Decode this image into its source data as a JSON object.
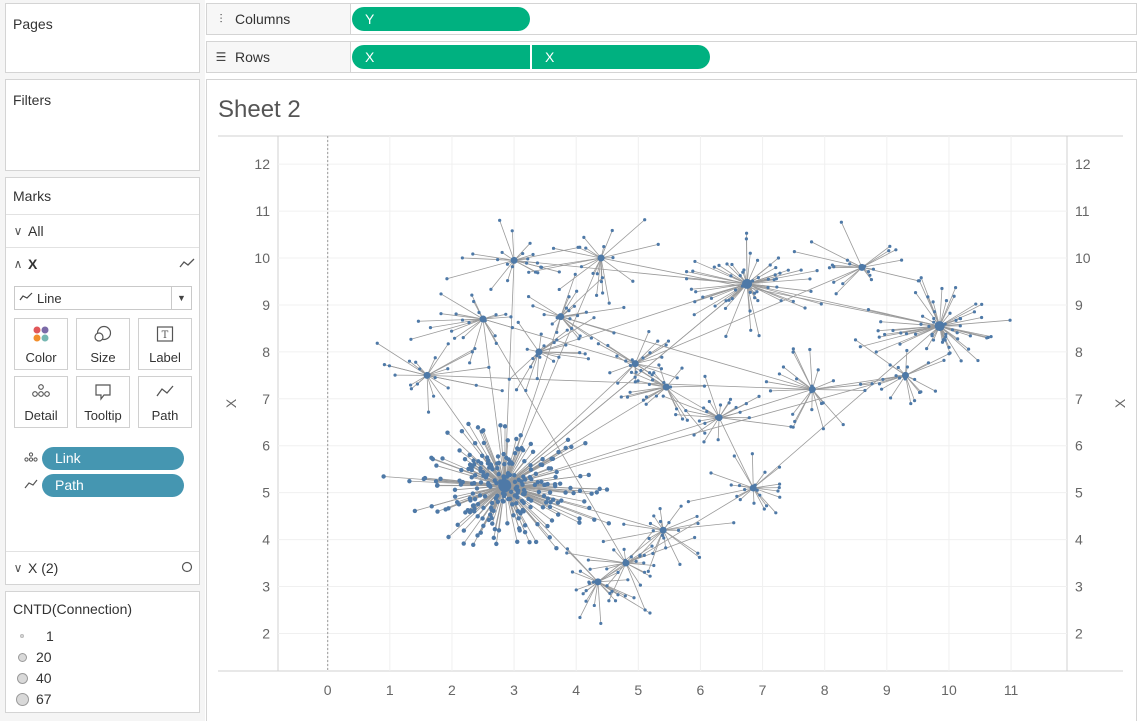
{
  "left_panel": {
    "pages_title": "Pages",
    "filters_title": "Filters",
    "marks": {
      "title": "Marks",
      "all_label": "All",
      "x_label": "X",
      "mark_type": "Line",
      "buttons": [
        {
          "label": "Color",
          "icon": "color-icon"
        },
        {
          "label": "Size",
          "icon": "size-icon"
        },
        {
          "label": "Label",
          "icon": "label-icon"
        },
        {
          "label": "Detail",
          "icon": "detail-icon"
        },
        {
          "label": "Tooltip",
          "icon": "tooltip-icon"
        },
        {
          "label": "Path",
          "icon": "path-icon"
        }
      ],
      "pills": [
        {
          "label": "Link",
          "icon": "detail-icon"
        },
        {
          "label": "Path",
          "icon": "path-icon"
        }
      ],
      "x2_label": "X (2)"
    },
    "legend": {
      "title": "CNTD(Connection)",
      "items": [
        "1",
        "20",
        "40",
        "67"
      ]
    }
  },
  "shelves": {
    "columns_label": "Columns",
    "rows_label": "Rows",
    "columns_pills": [
      "Y"
    ],
    "rows_pills": [
      "X",
      "X"
    ]
  },
  "sheet": {
    "title": "Sheet 2"
  },
  "chart_data": {
    "type": "scatter",
    "xlabel": "",
    "ylabel": "X",
    "ylabel_right": "X",
    "xlim": [
      -0.8,
      11.9
    ],
    "ylim": [
      1.2,
      12.6
    ],
    "x_ticks": [
      0,
      1,
      2,
      3,
      4,
      5,
      6,
      7,
      8,
      9,
      10,
      11
    ],
    "y_ticks": [
      2,
      3,
      4,
      5,
      6,
      7,
      8,
      9,
      10,
      11,
      12
    ],
    "link_color": "#9a9a9a",
    "point_color": "#4e79a7",
    "hubs": [
      {
        "x": 2.85,
        "y": 5.15,
        "size": 67
      },
      {
        "x": 6.75,
        "y": 9.45,
        "size": 40
      },
      {
        "x": 9.85,
        "y": 8.55,
        "size": 40
      },
      {
        "x": 6.85,
        "y": 5.1,
        "size": 20
      },
      {
        "x": 3.75,
        "y": 8.75,
        "size": 20
      },
      {
        "x": 6.3,
        "y": 6.6,
        "size": 20
      },
      {
        "x": 7.8,
        "y": 7.2,
        "size": 20
      },
      {
        "x": 5.45,
        "y": 7.25,
        "size": 20
      },
      {
        "x": 4.95,
        "y": 7.75,
        "size": 20
      },
      {
        "x": 3.4,
        "y": 8.0,
        "size": 20
      },
      {
        "x": 8.6,
        "y": 9.8,
        "size": 20
      },
      {
        "x": 3.0,
        "y": 9.95,
        "size": 20
      },
      {
        "x": 2.5,
        "y": 8.7,
        "size": 20
      },
      {
        "x": 4.35,
        "y": 3.1,
        "size": 20
      },
      {
        "x": 4.8,
        "y": 3.5,
        "size": 20
      },
      {
        "x": 9.3,
        "y": 7.5,
        "size": 20
      },
      {
        "x": 5.4,
        "y": 4.2,
        "size": 20
      },
      {
        "x": 4.4,
        "y": 10.0,
        "size": 20
      },
      {
        "x": 1.6,
        "y": 7.5,
        "size": 20
      }
    ]
  }
}
